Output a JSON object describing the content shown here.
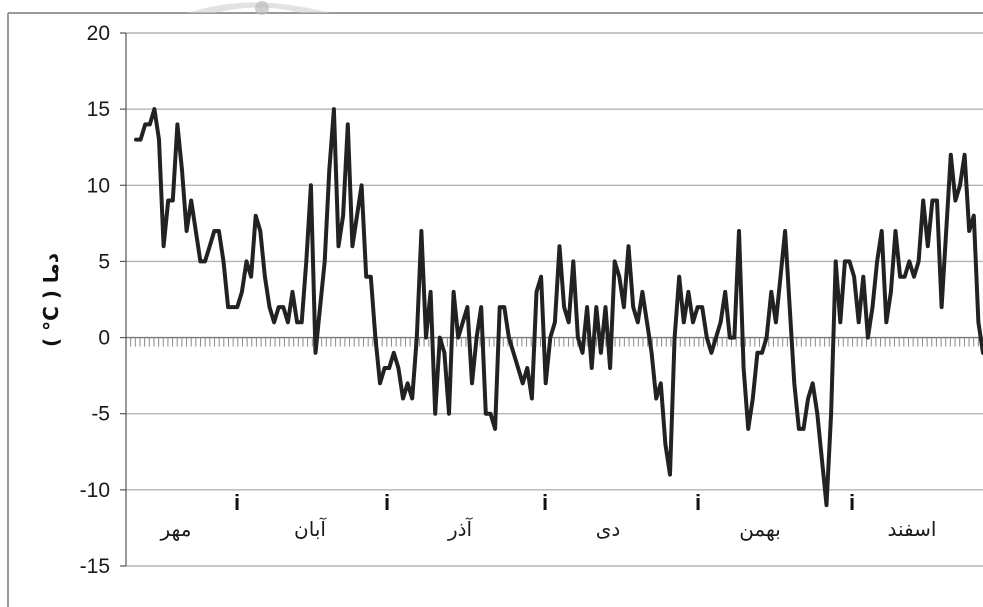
{
  "chart_data": {
    "type": "line",
    "title": "",
    "xlabel": "",
    "ylabel": "( °C ) دما",
    "ylim": [
      -15,
      20
    ],
    "yticks": [
      20,
      15,
      10,
      5,
      0,
      -5,
      -10,
      -15
    ],
    "grid": true,
    "legend": "none",
    "month_labels": [
      "مهر",
      "آبان",
      "آذر",
      "دی",
      "بهمن",
      "اسفند"
    ],
    "month_separator": "i",
    "series": [
      {
        "color": "#222222",
        "values": [
          13,
          13,
          14,
          14,
          15,
          13,
          6,
          9,
          9,
          14,
          11,
          7,
          9,
          7,
          5,
          5,
          6,
          7,
          7,
          5,
          2,
          2,
          2,
          3,
          5,
          4,
          8,
          7,
          4,
          2,
          1,
          2,
          2,
          1,
          3,
          1,
          1,
          5,
          10,
          -1,
          2,
          5,
          11,
          15,
          6,
          8,
          14,
          6,
          8,
          10,
          4,
          4,
          0,
          -3,
          -2,
          -2,
          -1,
          -2,
          -4,
          -3,
          -4,
          0,
          7,
          0,
          3,
          -5,
          0,
          -1,
          -5,
          3,
          0,
          1,
          2,
          -3,
          0,
          2,
          -5,
          -5,
          -6,
          2,
          2,
          0,
          -1,
          -2,
          -3,
          -2,
          -4,
          3,
          4,
          -3,
          0,
          1,
          6,
          2,
          1,
          5,
          0,
          -1,
          2,
          -2,
          2,
          -1,
          2,
          -2,
          5,
          4,
          2,
          6,
          2,
          1,
          3,
          1,
          -1,
          -4,
          -3,
          -7,
          -9,
          0,
          4,
          1,
          3,
          1,
          2,
          2,
          0,
          -1,
          0,
          1,
          3,
          0,
          0,
          7,
          -2,
          -6,
          -4,
          -1,
          -1,
          0,
          3,
          1,
          4,
          7,
          2,
          -3,
          -6,
          -6,
          -4,
          -3,
          -5,
          -8,
          -11,
          -5,
          5,
          1,
          5,
          5,
          4,
          1,
          4,
          0,
          2,
          5,
          7,
          1,
          3,
          7,
          4,
          4,
          5,
          4,
          5,
          9,
          6,
          9,
          9,
          2,
          7,
          12,
          9,
          10,
          12,
          7,
          8,
          1,
          -1
        ]
      }
    ]
  }
}
